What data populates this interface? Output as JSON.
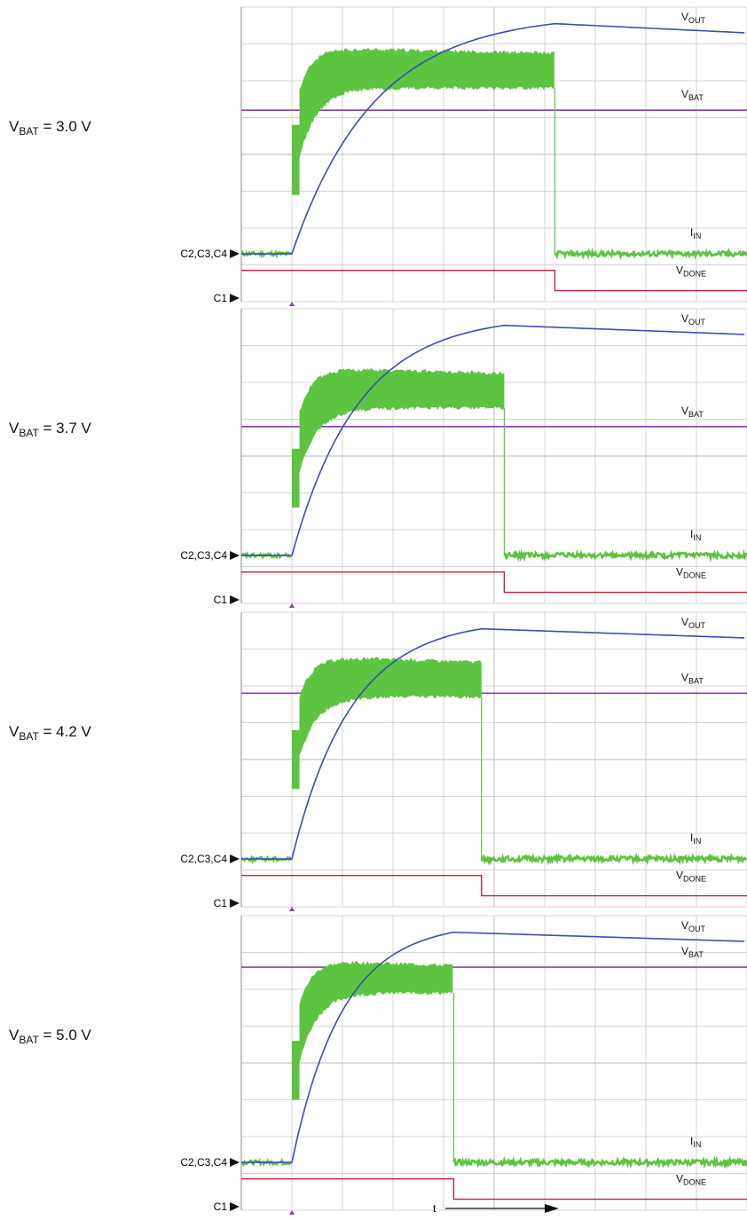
{
  "chart_data": {
    "type": "line",
    "x_unit": "divisions",
    "x_range": [
      0,
      10
    ],
    "y_range": [
      0,
      8
    ],
    "colors": {
      "V_OUT": "#3a4fb0",
      "I_IN": "#5cc440",
      "V_BAT": "#8a3fa8",
      "V_DONE": "#c8203a",
      "grid": "#c8c8c8"
    },
    "trace_labels": {
      "V_OUT": {
        "main": "V",
        "sub": "OUT"
      },
      "V_BAT": {
        "main": "V",
        "sub": "BAT"
      },
      "I_IN": {
        "main": "I",
        "sub": "IN"
      },
      "V_DONE": {
        "main": "V",
        "sub": "DONE"
      }
    },
    "markers": {
      "ch234": "C2,C3,C4",
      "ch1": "C1"
    },
    "time_axis_label": "t",
    "panels": [
      {
        "condition_prefix": "V",
        "condition_sub": "BAT",
        "condition_value": "=  3.0 V",
        "start_x": 1.0,
        "end_x": 6.2,
        "vout_base": 1.3,
        "vout_peak": 7.55,
        "vout_final": 7.3,
        "vbat_level": 5.2,
        "iin_base": 1.3,
        "iin_top": 6.9,
        "iin_body_low": 5.8,
        "iin_initial_min": 2.9,
        "iin_initial_max": 4.8,
        "iin_after": 1.3,
        "vdone_high": 0.85,
        "vdone_low": 0.3
      },
      {
        "condition_prefix": "V",
        "condition_sub": "BAT",
        "condition_value": "=  3.7 V",
        "start_x": 1.0,
        "end_x": 5.2,
        "vout_base": 1.3,
        "vout_peak": 7.55,
        "vout_final": 7.3,
        "vbat_level": 4.8,
        "iin_base": 1.3,
        "iin_top": 6.4,
        "iin_body_low": 5.3,
        "iin_initial_min": 2.6,
        "iin_initial_max": 4.2,
        "iin_after": 1.3,
        "vdone_high": 0.85,
        "vdone_low": 0.3
      },
      {
        "condition_prefix": "V",
        "condition_sub": "BAT",
        "condition_value": "=  4.2 V",
        "start_x": 1.0,
        "end_x": 4.75,
        "vout_base": 1.3,
        "vout_peak": 7.55,
        "vout_final": 7.3,
        "vbat_level": 5.8,
        "iin_base": 1.3,
        "iin_top": 6.8,
        "iin_body_low": 5.7,
        "iin_initial_min": 3.2,
        "iin_initial_max": 4.8,
        "iin_after": 1.3,
        "vdone_high": 0.85,
        "vdone_low": 0.3
      },
      {
        "condition_prefix": "V",
        "condition_sub": "BAT",
        "condition_value": "=  5.0 V",
        "start_x": 1.0,
        "end_x": 4.2,
        "vout_base": 1.3,
        "vout_peak": 7.55,
        "vout_final": 7.3,
        "vbat_level": 6.6,
        "iin_base": 1.3,
        "iin_top": 6.8,
        "iin_body_low": 5.9,
        "iin_initial_min": 3.0,
        "iin_initial_max": 4.6,
        "iin_after": 1.3,
        "vdone_high": 0.85,
        "vdone_low": 0.3
      }
    ]
  }
}
